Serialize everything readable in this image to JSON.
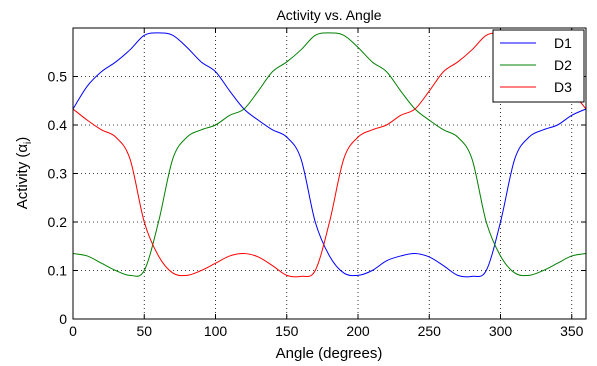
{
  "chart_data": {
    "type": "line",
    "title": "Activity vs. Angle",
    "xlabel": "Angle (degrees)",
    "ylabel": "Activity (α_i)",
    "xlim": [
      0,
      360
    ],
    "ylim": [
      0,
      0.6
    ],
    "xticks": [
      0,
      50,
      100,
      150,
      200,
      250,
      300,
      350
    ],
    "yticks": [
      0,
      0.1,
      0.2,
      0.3,
      0.4,
      0.5
    ],
    "grid": true,
    "legend_position": "top-right",
    "x": [
      0,
      10,
      20,
      30,
      40,
      50,
      60,
      70,
      80,
      90,
      100,
      110,
      120,
      130,
      140,
      150,
      160,
      170,
      180,
      190,
      200,
      210,
      220,
      230,
      240,
      250,
      260,
      270,
      280,
      290,
      300,
      310,
      320,
      330,
      340,
      350,
      360
    ],
    "series": [
      {
        "name": "D1",
        "color": "#0000ff",
        "values": [
          0.433,
          0.48,
          0.51,
          0.53,
          0.555,
          0.585,
          0.59,
          0.585,
          0.56,
          0.53,
          0.51,
          0.47,
          0.433,
          0.41,
          0.39,
          0.375,
          0.33,
          0.2,
          0.13,
          0.095,
          0.09,
          0.1,
          0.12,
          0.13,
          0.135,
          0.128,
          0.11,
          0.09,
          0.088,
          0.1,
          0.2,
          0.33,
          0.375,
          0.39,
          0.4,
          0.42,
          0.433
        ]
      },
      {
        "name": "D2",
        "color": "#008000",
        "values": [
          0.135,
          0.13,
          0.115,
          0.1,
          0.09,
          0.1,
          0.2,
          0.33,
          0.375,
          0.39,
          0.4,
          0.42,
          0.433,
          0.47,
          0.51,
          0.53,
          0.555,
          0.585,
          0.59,
          0.585,
          0.56,
          0.53,
          0.51,
          0.47,
          0.433,
          0.41,
          0.39,
          0.375,
          0.33,
          0.2,
          0.13,
          0.095,
          0.09,
          0.1,
          0.115,
          0.13,
          0.135
        ]
      },
      {
        "name": "D3",
        "color": "#ff0000",
        "values": [
          0.433,
          0.41,
          0.39,
          0.375,
          0.33,
          0.2,
          0.13,
          0.095,
          0.09,
          0.1,
          0.115,
          0.13,
          0.135,
          0.128,
          0.11,
          0.09,
          0.088,
          0.1,
          0.2,
          0.33,
          0.375,
          0.39,
          0.4,
          0.42,
          0.433,
          0.47,
          0.51,
          0.53,
          0.555,
          0.585,
          0.59,
          0.585,
          0.56,
          0.53,
          0.51,
          0.47,
          0.433
        ]
      }
    ]
  }
}
